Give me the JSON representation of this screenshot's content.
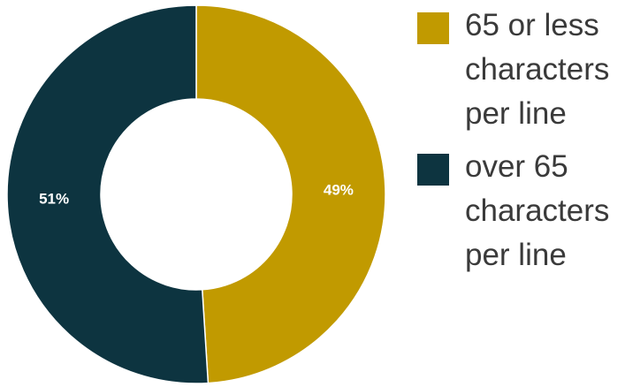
{
  "chart_data": {
    "type": "pie",
    "donut": true,
    "slices": [
      {
        "label": "65 or less characters per line",
        "value": 49,
        "display": "49%",
        "color": "#c19a00"
      },
      {
        "label": "over 65 characters per line",
        "value": 51,
        "display": "51%",
        "color": "#0d3440"
      }
    ],
    "legend_position": "right"
  }
}
